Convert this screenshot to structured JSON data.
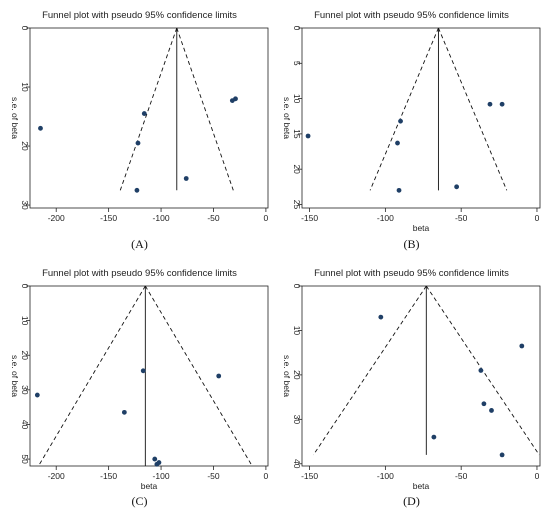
{
  "chart_data": [
    {
      "type": "scatter",
      "caption": "(A)",
      "title": "Funnel plot with pseudo 95% confidence limits",
      "xlabel": "",
      "ylabel": "s.e. of beta",
      "xlim": [
        -225,
        2
      ],
      "ylim": [
        0,
        30.5
      ],
      "y_reversed": true,
      "xticks": [
        -200,
        -150,
        -100,
        -50,
        0
      ],
      "yticks": [
        0,
        10,
        20,
        30
      ],
      "pooled_beta": -85,
      "funnel_base_se": 27.5,
      "points": [
        {
          "x": -215,
          "y": 17
        },
        {
          "x": -116,
          "y": 14.5
        },
        {
          "x": -122,
          "y": 19.5
        },
        {
          "x": -123,
          "y": 27.5
        },
        {
          "x": -76,
          "y": 25.5
        },
        {
          "x": -32,
          "y": 12.3
        },
        {
          "x": -29,
          "y": 12
        }
      ]
    },
    {
      "type": "scatter",
      "caption": "(B)",
      "title": "Funnel plot with pseudo 95% confidence limits",
      "xlabel": "beta",
      "ylabel": "s.e. of beta",
      "xlim": [
        -155,
        2
      ],
      "ylim": [
        0,
        25.5
      ],
      "y_reversed": true,
      "xticks": [
        -150,
        -100,
        -50,
        0
      ],
      "yticks": [
        0,
        5,
        10,
        15,
        20,
        25
      ],
      "pooled_beta": -65,
      "funnel_base_se": 23,
      "points": [
        {
          "x": -151,
          "y": 15.3
        },
        {
          "x": -90,
          "y": 13.2
        },
        {
          "x": -92,
          "y": 16.3
        },
        {
          "x": -91,
          "y": 23
        },
        {
          "x": -53,
          "y": 22.5
        },
        {
          "x": -31,
          "y": 10.8
        },
        {
          "x": -23,
          "y": 10.8
        }
      ]
    },
    {
      "type": "scatter",
      "caption": "(C)",
      "title": "Funnel plot with pseudo 95% confidence limits",
      "xlabel": "beta",
      "ylabel": "s.e. of beta",
      "xlim": [
        -225,
        2
      ],
      "ylim": [
        0,
        52
      ],
      "y_reversed": true,
      "xticks": [
        -200,
        -150,
        -100,
        -50,
        0
      ],
      "yticks": [
        0,
        10,
        20,
        30,
        40,
        50
      ],
      "pooled_beta": -115,
      "funnel_base_se": 52,
      "points": [
        {
          "x": -218,
          "y": 31.5
        },
        {
          "x": -117,
          "y": 24.5
        },
        {
          "x": -135,
          "y": 36.5
        },
        {
          "x": -45,
          "y": 26
        },
        {
          "x": -106,
          "y": 50
        },
        {
          "x": -104,
          "y": 51.5
        },
        {
          "x": -102,
          "y": 51
        }
      ]
    },
    {
      "type": "scatter",
      "caption": "(D)",
      "title": "Funnel plot with pseudo 95% confidence limits",
      "xlabel": "beta",
      "ylabel": "s.e. of beta",
      "xlim": [
        -155,
        2
      ],
      "ylim": [
        0,
        40.5
      ],
      "y_reversed": true,
      "xticks": [
        -150,
        -100,
        -50,
        0
      ],
      "yticks": [
        0,
        10,
        20,
        30,
        40
      ],
      "pooled_beta": -73,
      "funnel_base_se": 38,
      "points": [
        {
          "x": -103,
          "y": 7
        },
        {
          "x": -10,
          "y": 13.5
        },
        {
          "x": -37,
          "y": 19
        },
        {
          "x": -35,
          "y": 26.5
        },
        {
          "x": -30,
          "y": 28
        },
        {
          "x": -68,
          "y": 34
        },
        {
          "x": -23,
          "y": 38
        }
      ]
    }
  ],
  "colors": {
    "point": "#1f3f66",
    "line": "#111111",
    "axis": "#222222"
  }
}
